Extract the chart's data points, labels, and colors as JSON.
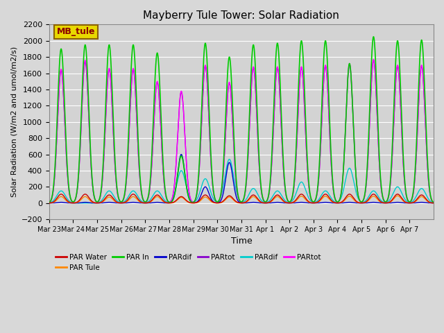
{
  "title": "Mayberry Tule Tower: Solar Radiation",
  "xlabel": "Time",
  "ylabel": "Solar Radiation (W/m2 and umol/m2/s)",
  "ylim": [
    -200,
    2200
  ],
  "yticks": [
    -200,
    0,
    200,
    400,
    600,
    800,
    1000,
    1200,
    1400,
    1600,
    1800,
    2000,
    2200
  ],
  "n_days": 16,
  "plot_bg_color": "#d3d3d3",
  "fig_bg_color": "#d8d8d8",
  "legend_box_text": "MB_tule",
  "legend_box_facecolor": "#e8d800",
  "legend_box_edgecolor": "#8B6000",
  "legend_box_textcolor": "#8B0000",
  "legend_entries": [
    {
      "label": "PAR Water",
      "color": "#cc0000"
    },
    {
      "label": "PAR Tule",
      "color": "#ff8800"
    },
    {
      "label": "PAR In",
      "color": "#00cc00"
    },
    {
      "label": "PARdif",
      "color": "#0000cc"
    },
    {
      "label": "PARtot",
      "color": "#8800cc"
    },
    {
      "label": "PARdif",
      "color": "#00cccc"
    },
    {
      "label": "PARtot",
      "color": "#ff00ff"
    }
  ],
  "x_tick_labels": [
    "Mar 23",
    "Mar 24",
    "Mar 25",
    "Mar 26",
    "Mar 27",
    "Mar 28",
    "Mar 29",
    "Mar 30",
    "Mar 31",
    "Apr 1",
    "Apr 2",
    "Apr 3",
    "Apr 4",
    "Apr 5",
    "Apr 6",
    "Apr 7"
  ],
  "par_in_peaks": [
    1900,
    1950,
    1950,
    1950,
    1850,
    580,
    1970,
    1800,
    1950,
    1970,
    2000,
    2000,
    1720,
    2050,
    2000,
    2010
  ],
  "par_water_peaks": [
    110,
    110,
    100,
    110,
    100,
    80,
    100,
    90,
    100,
    100,
    110,
    110,
    110,
    110,
    110,
    100
  ],
  "par_tule_peaks": [
    80,
    80,
    75,
    80,
    80,
    70,
    75,
    75,
    80,
    80,
    85,
    85,
    85,
    85,
    90,
    80
  ],
  "pardif_cyan_peaks": [
    150,
    0,
    150,
    150,
    150,
    400,
    300,
    540,
    180,
    150,
    260,
    150,
    430,
    150,
    200,
    180
  ],
  "partot_mag_peaks": [
    1650,
    1760,
    1660,
    1660,
    1500,
    1380,
    1700,
    1490,
    1680,
    1680,
    1680,
    1700,
    1720,
    1770,
    1700,
    1700
  ],
  "pardif_blue_peaks": [
    10,
    10,
    10,
    10,
    10,
    600,
    200,
    500,
    10,
    10,
    10,
    10,
    10,
    10,
    10,
    10
  ],
  "partot_purp_peaks": [
    1640,
    1740,
    1650,
    1650,
    1490,
    1370,
    1690,
    1480,
    1670,
    1670,
    1670,
    1690,
    1710,
    1760,
    1690,
    1690
  ]
}
